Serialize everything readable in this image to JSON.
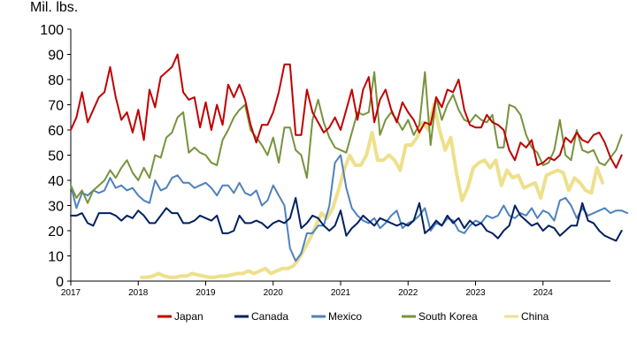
{
  "chart_data": {
    "type": "line",
    "title": "",
    "ylabel": "Mil. lbs.",
    "xlabel": "",
    "ylim": [
      0,
      100
    ],
    "yticks": [
      0,
      10,
      20,
      30,
      40,
      50,
      60,
      70,
      80,
      90,
      100
    ],
    "xlim": [
      2017.0,
      2025.0
    ],
    "xticks": [
      2017,
      2018,
      2019,
      2020,
      2021,
      2022,
      2023,
      2024
    ],
    "grid": false,
    "legend": "bottom",
    "series": [
      {
        "name": "Japan",
        "color": "#C00000",
        "start": 2017.0,
        "values": [
          60,
          65,
          75,
          63,
          68,
          73,
          75,
          85,
          73,
          64,
          67,
          59,
          68,
          56,
          76,
          69,
          81,
          83,
          85,
          90,
          75,
          72,
          73,
          61,
          71,
          60,
          70,
          62,
          78,
          73,
          78,
          72,
          62,
          55,
          62,
          62,
          67,
          75,
          86,
          86,
          58,
          58,
          76,
          67,
          63,
          59,
          61,
          65,
          60,
          68,
          76,
          64,
          76,
          81,
          63,
          72,
          76,
          68,
          63,
          71,
          67,
          64,
          59,
          63,
          62,
          73,
          69,
          76,
          75,
          80,
          68,
          62,
          61,
          61,
          66,
          63,
          62,
          60,
          52,
          48,
          55,
          53,
          56,
          46,
          47,
          49,
          48,
          50,
          57,
          55,
          59,
          56,
          55,
          58,
          59,
          55,
          49,
          45,
          50
        ]
      },
      {
        "name": "Canada",
        "color": "#002060",
        "start": 2017.0,
        "values": [
          26,
          26,
          27,
          23,
          22,
          27,
          27,
          27,
          26,
          24,
          26,
          25,
          28,
          26,
          23,
          23,
          26,
          29,
          27,
          27,
          23,
          23,
          24,
          26,
          25,
          24,
          26,
          19,
          19,
          20,
          26,
          23,
          23,
          24,
          23,
          21,
          23,
          24,
          23,
          25,
          33,
          21,
          23,
          26,
          25,
          22,
          20,
          22,
          28,
          18,
          21,
          23,
          26,
          24,
          22,
          25,
          24,
          23,
          22,
          23,
          22,
          24,
          31,
          19,
          21,
          24,
          22,
          26,
          23,
          25,
          21,
          24,
          22,
          23,
          20,
          19,
          17,
          20,
          22,
          30,
          26,
          24,
          22,
          23,
          20,
          22,
          21,
          18,
          20,
          22,
          22,
          31,
          24,
          23,
          20,
          18,
          17,
          16,
          20
        ]
      },
      {
        "name": "Mexico",
        "color": "#4F81BD",
        "start": 2017.0,
        "values": [
          38,
          29,
          35,
          34,
          36,
          35,
          36,
          41,
          37,
          38,
          36,
          37,
          34,
          32,
          31,
          40,
          36,
          37,
          41,
          42,
          39,
          39,
          37,
          38,
          39,
          37,
          34,
          38,
          38,
          35,
          39,
          35,
          34,
          36,
          30,
          32,
          38,
          34,
          30,
          13,
          8,
          11,
          19,
          19,
          22,
          22,
          30,
          47,
          50,
          37,
          29,
          26,
          24,
          23,
          25,
          21,
          23,
          26,
          28,
          21,
          23,
          24,
          26,
          29,
          20,
          23,
          22,
          25,
          24,
          20,
          19,
          22,
          24,
          23,
          26,
          25,
          26,
          30,
          26,
          25,
          27,
          26,
          29,
          25,
          28,
          27,
          24,
          32,
          33,
          30,
          25,
          29,
          26,
          27,
          28,
          29,
          27,
          28,
          28,
          27
        ]
      },
      {
        "name": "South Korea",
        "color": "#77933C",
        "start": 2017.0,
        "values": [
          38,
          33,
          36,
          31,
          36,
          38,
          40,
          44,
          41,
          45,
          48,
          43,
          40,
          45,
          41,
          50,
          49,
          57,
          59,
          65,
          67,
          51,
          53,
          51,
          50,
          47,
          46,
          56,
          60,
          65,
          68,
          70,
          60,
          57,
          54,
          50,
          57,
          47,
          61,
          61,
          52,
          50,
          41,
          64,
          72,
          63,
          57,
          53,
          52,
          51,
          59,
          67,
          66,
          67,
          83,
          58,
          64,
          67,
          64,
          60,
          64,
          58,
          62,
          83,
          54,
          73,
          64,
          70,
          74,
          68,
          64,
          63,
          66,
          64,
          63,
          66,
          53,
          53,
          70,
          69,
          66,
          58,
          53,
          51,
          46,
          47,
          52,
          64,
          50,
          48,
          60,
          52,
          51,
          52,
          47,
          46,
          49,
          52,
          58
        ]
      },
      {
        "name": "China",
        "color": "#EEE08C",
        "start": 2018.05,
        "values": [
          1.5,
          1.5,
          2,
          3,
          2,
          1.5,
          1.5,
          2,
          2,
          3,
          2.5,
          2,
          1.5,
          1.5,
          2,
          2,
          2.5,
          3,
          3,
          4,
          3,
          4,
          5,
          3,
          4,
          5,
          5,
          6,
          9,
          13,
          17,
          22,
          27,
          25,
          29,
          36,
          44,
          50,
          46,
          46,
          50,
          59,
          48,
          48,
          50,
          48,
          44,
          54,
          54,
          57,
          63,
          60,
          70,
          60,
          52,
          57,
          43,
          32,
          37,
          45,
          47,
          48,
          45,
          48,
          38,
          44,
          41,
          42,
          37,
          38,
          39,
          33,
          42,
          43,
          44,
          43,
          36,
          41,
          39,
          36,
          35,
          45,
          39
        ]
      }
    ]
  }
}
